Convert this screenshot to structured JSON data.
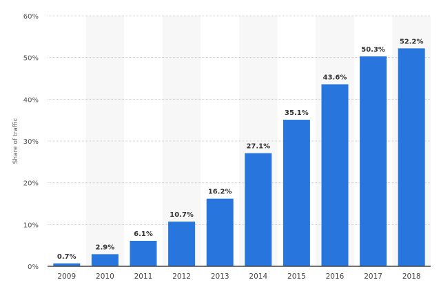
{
  "chart_data": {
    "type": "bar",
    "categories": [
      "2009",
      "2010",
      "2011",
      "2012",
      "2013",
      "2014",
      "2015",
      "2016",
      "2017",
      "2018"
    ],
    "values": [
      0.7,
      2.9,
      6.1,
      10.7,
      16.2,
      27.1,
      35.1,
      43.6,
      50.3,
      52.2
    ],
    "data_labels": [
      "0.7%",
      "2.9%",
      "6.1%",
      "10.7%",
      "16.2%",
      "27.1%",
      "35.1%",
      "43.6%",
      "50.3%",
      "52.2%"
    ],
    "title": "",
    "xlabel": "",
    "ylabel": "Share of traffic",
    "ylim": [
      0,
      60
    ],
    "yticks": [
      0,
      10,
      20,
      30,
      40,
      50,
      60
    ],
    "ytick_labels": [
      "0%",
      "10%",
      "20%",
      "30%",
      "40%",
      "50%",
      "60%"
    ],
    "grid": "horizontal dotted",
    "alternating_column_bands": true,
    "legend": "none",
    "colors": {
      "bar": "#2876dd",
      "band": "#f7f7f7",
      "grid": "#d0d0d0",
      "axis": "#444444"
    }
  }
}
